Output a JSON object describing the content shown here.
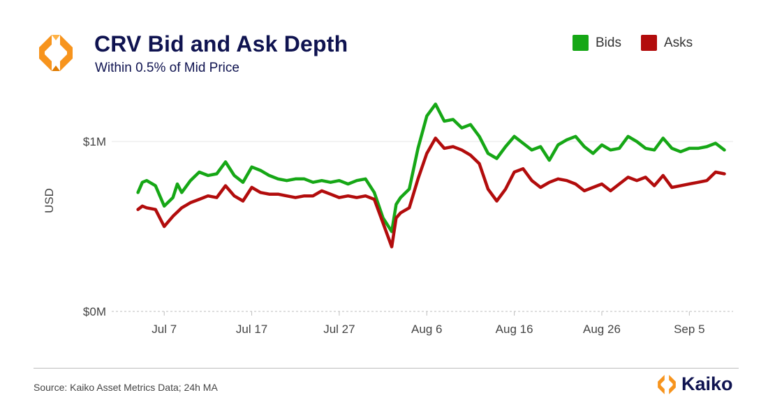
{
  "header": {
    "title": "CRV Bid and Ask Depth",
    "subtitle": "Within 0.5% of Mid Price"
  },
  "footer": {
    "source": "Source: Kaiko Asset Metrics Data; 24h MA",
    "brand": "Kaiko"
  },
  "colors": {
    "bids": "#16a716",
    "asks": "#b20c0c",
    "title": "#0f1350",
    "logo_orange": "#f7941d"
  },
  "chart_data": {
    "type": "line",
    "title": "CRV Bid and Ask Depth",
    "subtitle": "Within 0.5% of Mid Price",
    "ylabel": "USD",
    "xlabel": "",
    "ylim": [
      0,
      1.3
    ],
    "yunit": "M",
    "yticks": [
      {
        "value": 0,
        "label": "$0M"
      },
      {
        "value": 1,
        "label": "$1M"
      }
    ],
    "xlim": [
      "2023-07-01",
      "2023-09-10"
    ],
    "xticks": [
      {
        "date": "2023-07-07",
        "label": "Jul 7"
      },
      {
        "date": "2023-07-17",
        "label": "Jul 17"
      },
      {
        "date": "2023-07-27",
        "label": "Jul 27"
      },
      {
        "date": "2023-08-06",
        "label": "Aug 6"
      },
      {
        "date": "2023-08-16",
        "label": "Aug 16"
      },
      {
        "date": "2023-08-26",
        "label": "Aug 26"
      },
      {
        "date": "2023-09-05",
        "label": "Sep 5"
      }
    ],
    "grid": true,
    "legend_position": "top-right",
    "series": [
      {
        "name": "Bids",
        "color": "#16a716",
        "points": [
          [
            "2023-07-04",
            0.7
          ],
          [
            "2023-07-04T12",
            0.76
          ],
          [
            "2023-07-05",
            0.77
          ],
          [
            "2023-07-06",
            0.74
          ],
          [
            "2023-07-07",
            0.62
          ],
          [
            "2023-07-08",
            0.67
          ],
          [
            "2023-07-08T12",
            0.75
          ],
          [
            "2023-07-09",
            0.7
          ],
          [
            "2023-07-10",
            0.77
          ],
          [
            "2023-07-11",
            0.82
          ],
          [
            "2023-07-12",
            0.8
          ],
          [
            "2023-07-13",
            0.81
          ],
          [
            "2023-07-14",
            0.88
          ],
          [
            "2023-07-15",
            0.8
          ],
          [
            "2023-07-16",
            0.76
          ],
          [
            "2023-07-17",
            0.85
          ],
          [
            "2023-07-18",
            0.83
          ],
          [
            "2023-07-19",
            0.8
          ],
          [
            "2023-07-20",
            0.78
          ],
          [
            "2023-07-21",
            0.77
          ],
          [
            "2023-07-22",
            0.78
          ],
          [
            "2023-07-23",
            0.78
          ],
          [
            "2023-07-24",
            0.76
          ],
          [
            "2023-07-25",
            0.77
          ],
          [
            "2023-07-26",
            0.76
          ],
          [
            "2023-07-27",
            0.77
          ],
          [
            "2023-07-28",
            0.75
          ],
          [
            "2023-07-29",
            0.77
          ],
          [
            "2023-07-30",
            0.78
          ],
          [
            "2023-07-31",
            0.7
          ],
          [
            "2023-08-01",
            0.55
          ],
          [
            "2023-08-02",
            0.47
          ],
          [
            "2023-08-02T12",
            0.63
          ],
          [
            "2023-08-03",
            0.67
          ],
          [
            "2023-08-04",
            0.72
          ],
          [
            "2023-08-05",
            0.96
          ],
          [
            "2023-08-06",
            1.15
          ],
          [
            "2023-08-07",
            1.22
          ],
          [
            "2023-08-08",
            1.12
          ],
          [
            "2023-08-09",
            1.13
          ],
          [
            "2023-08-10",
            1.08
          ],
          [
            "2023-08-11",
            1.1
          ],
          [
            "2023-08-12",
            1.03
          ],
          [
            "2023-08-13",
            0.93
          ],
          [
            "2023-08-14",
            0.9
          ],
          [
            "2023-08-15",
            0.97
          ],
          [
            "2023-08-16",
            1.03
          ],
          [
            "2023-08-17",
            0.99
          ],
          [
            "2023-08-18",
            0.95
          ],
          [
            "2023-08-19",
            0.97
          ],
          [
            "2023-08-20",
            0.89
          ],
          [
            "2023-08-21",
            0.98
          ],
          [
            "2023-08-22",
            1.01
          ],
          [
            "2023-08-23",
            1.03
          ],
          [
            "2023-08-24",
            0.97
          ],
          [
            "2023-08-25",
            0.93
          ],
          [
            "2023-08-26",
            0.98
          ],
          [
            "2023-08-27",
            0.95
          ],
          [
            "2023-08-28",
            0.96
          ],
          [
            "2023-08-29",
            1.03
          ],
          [
            "2023-08-30",
            1.0
          ],
          [
            "2023-08-31",
            0.96
          ],
          [
            "2023-09-01",
            0.95
          ],
          [
            "2023-09-02",
            1.02
          ],
          [
            "2023-09-03",
            0.96
          ],
          [
            "2023-09-04",
            0.94
          ],
          [
            "2023-09-05",
            0.96
          ],
          [
            "2023-09-06",
            0.96
          ],
          [
            "2023-09-07",
            0.97
          ],
          [
            "2023-09-08",
            0.99
          ],
          [
            "2023-09-09",
            0.95
          ]
        ]
      },
      {
        "name": "Asks",
        "color": "#b20c0c",
        "points": [
          [
            "2023-07-04",
            0.6
          ],
          [
            "2023-07-04T12",
            0.62
          ],
          [
            "2023-07-05",
            0.61
          ],
          [
            "2023-07-06",
            0.6
          ],
          [
            "2023-07-07",
            0.5
          ],
          [
            "2023-07-08",
            0.56
          ],
          [
            "2023-07-09",
            0.61
          ],
          [
            "2023-07-10",
            0.64
          ],
          [
            "2023-07-11",
            0.66
          ],
          [
            "2023-07-12",
            0.68
          ],
          [
            "2023-07-13",
            0.67
          ],
          [
            "2023-07-14",
            0.74
          ],
          [
            "2023-07-15",
            0.68
          ],
          [
            "2023-07-16",
            0.65
          ],
          [
            "2023-07-17",
            0.73
          ],
          [
            "2023-07-18",
            0.7
          ],
          [
            "2023-07-19",
            0.69
          ],
          [
            "2023-07-20",
            0.69
          ],
          [
            "2023-07-21",
            0.68
          ],
          [
            "2023-07-22",
            0.67
          ],
          [
            "2023-07-23",
            0.68
          ],
          [
            "2023-07-24",
            0.68
          ],
          [
            "2023-07-25",
            0.71
          ],
          [
            "2023-07-26",
            0.69
          ],
          [
            "2023-07-27",
            0.67
          ],
          [
            "2023-07-28",
            0.68
          ],
          [
            "2023-07-29",
            0.67
          ],
          [
            "2023-07-30",
            0.68
          ],
          [
            "2023-07-31",
            0.66
          ],
          [
            "2023-08-01",
            0.52
          ],
          [
            "2023-08-02",
            0.38
          ],
          [
            "2023-08-02T12",
            0.55
          ],
          [
            "2023-08-03",
            0.58
          ],
          [
            "2023-08-04",
            0.61
          ],
          [
            "2023-08-05",
            0.78
          ],
          [
            "2023-08-06",
            0.93
          ],
          [
            "2023-08-07",
            1.02
          ],
          [
            "2023-08-08",
            0.96
          ],
          [
            "2023-08-09",
            0.97
          ],
          [
            "2023-08-10",
            0.95
          ],
          [
            "2023-08-11",
            0.92
          ],
          [
            "2023-08-12",
            0.87
          ],
          [
            "2023-08-13",
            0.72
          ],
          [
            "2023-08-14",
            0.65
          ],
          [
            "2023-08-15",
            0.72
          ],
          [
            "2023-08-16",
            0.82
          ],
          [
            "2023-08-17",
            0.84
          ],
          [
            "2023-08-18",
            0.77
          ],
          [
            "2023-08-19",
            0.73
          ],
          [
            "2023-08-20",
            0.76
          ],
          [
            "2023-08-21",
            0.78
          ],
          [
            "2023-08-22",
            0.77
          ],
          [
            "2023-08-23",
            0.75
          ],
          [
            "2023-08-24",
            0.71
          ],
          [
            "2023-08-25",
            0.73
          ],
          [
            "2023-08-26",
            0.75
          ],
          [
            "2023-08-27",
            0.71
          ],
          [
            "2023-08-28",
            0.75
          ],
          [
            "2023-08-29",
            0.79
          ],
          [
            "2023-08-30",
            0.77
          ],
          [
            "2023-08-31",
            0.79
          ],
          [
            "2023-09-01",
            0.74
          ],
          [
            "2023-09-02",
            0.8
          ],
          [
            "2023-09-03",
            0.73
          ],
          [
            "2023-09-04",
            0.74
          ],
          [
            "2023-09-05",
            0.75
          ],
          [
            "2023-09-06",
            0.76
          ],
          [
            "2023-09-07",
            0.77
          ],
          [
            "2023-09-08",
            0.82
          ],
          [
            "2023-09-09",
            0.81
          ]
        ]
      }
    ]
  }
}
